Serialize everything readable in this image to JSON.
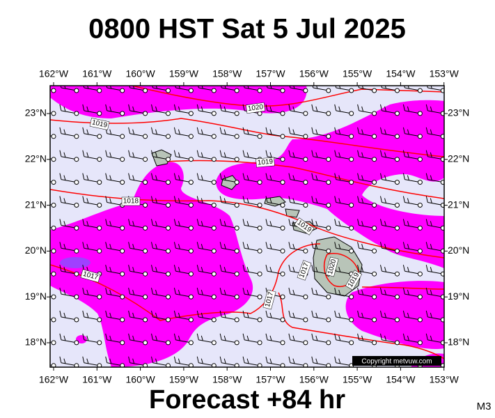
{
  "title": "0800 HST Sat 5 Jul 2025",
  "subtitle": "Forecast +84 hr",
  "corner_label": "M3",
  "copyright": "Copyright metvuw.com",
  "longitude_labels": [
    "162°W",
    "161°W",
    "160°W",
    "159°W",
    "158°W",
    "157°W",
    "156°W",
    "155°W",
    "154°W",
    "153°W"
  ],
  "latitude_labels": [
    "23°N",
    "22°N",
    "21°N",
    "20°N",
    "19°N",
    "18°N"
  ],
  "isobar_labels": [
    "1020",
    "1019",
    "1019",
    "1018",
    "1019",
    "1017",
    "1017",
    "1020",
    "1019",
    "1017"
  ]
}
